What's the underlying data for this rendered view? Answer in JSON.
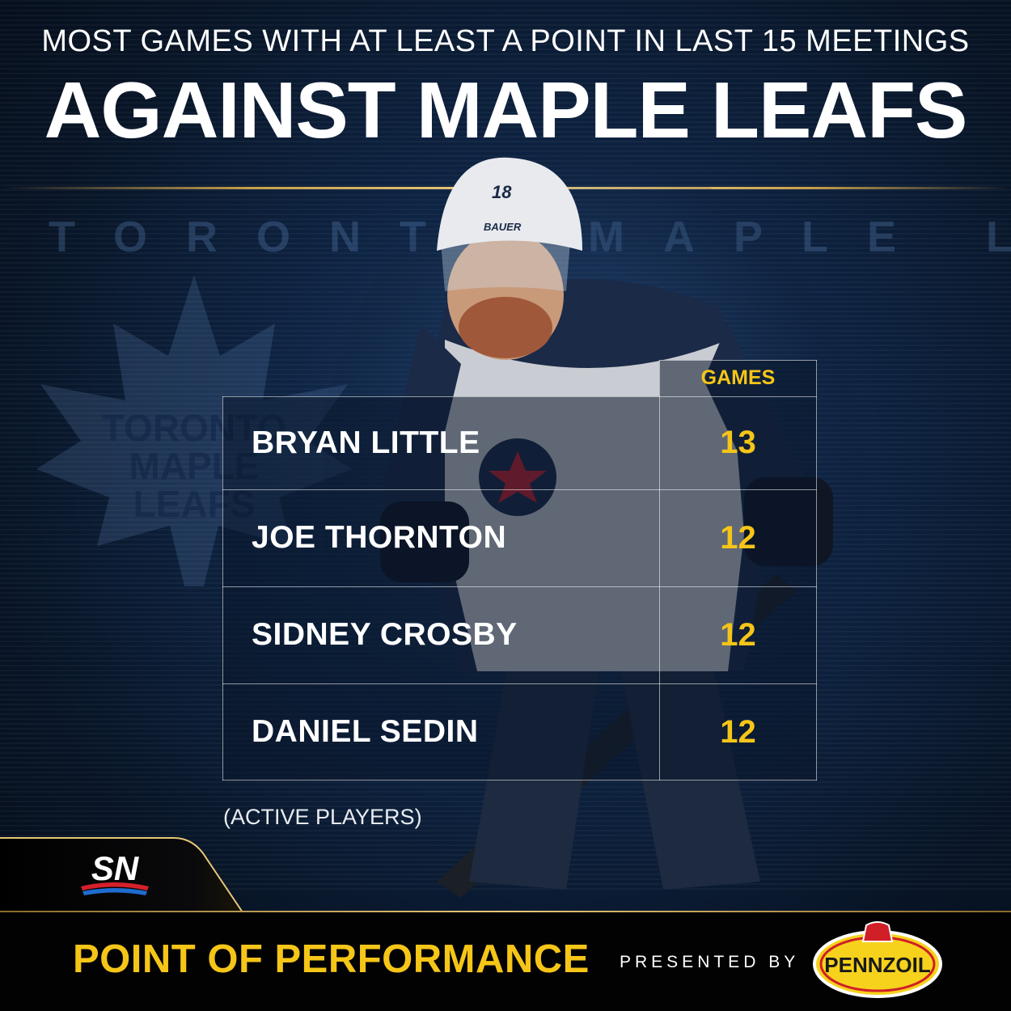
{
  "header": {
    "subtitle": "MOST GAMES WITH AT LEAST A POINT IN LAST 15 MEETINGS",
    "title": "AGAINST MAPLE LEAFS"
  },
  "background": {
    "wordmark": "TORONTO MAPLE LEAFS",
    "leaf_logo_text": [
      "TORONTO",
      "MAPLE",
      "LEAFS"
    ]
  },
  "player_image": {
    "jersey_number": "18",
    "helmet_brand": "BAUER"
  },
  "table": {
    "column_header": "GAMES",
    "rows": [
      {
        "name": "BRYAN LITTLE",
        "games": "13"
      },
      {
        "name": "JOE THORNTON",
        "games": "12"
      },
      {
        "name": "SIDNEY CROSBY",
        "games": "12"
      },
      {
        "name": "DANIEL SEDIN",
        "games": "12"
      }
    ]
  },
  "footnote": "(ACTIVE PLAYERS)",
  "branding": {
    "network_logo": "SN",
    "segment_title": "POINT OF PERFORMANCE",
    "presented_by": "PRESENTED BY",
    "sponsor_logo": "PENNZOIL"
  },
  "colors": {
    "accent_yellow": "#f5c518",
    "gold_line": "#e8c878",
    "background_navy": "#0e2444",
    "sn_red": "#d6202b",
    "sn_blue": "#1f6ccf",
    "pennzoil_yellow": "#f6d21c",
    "pennzoil_red": "#d01f27"
  }
}
